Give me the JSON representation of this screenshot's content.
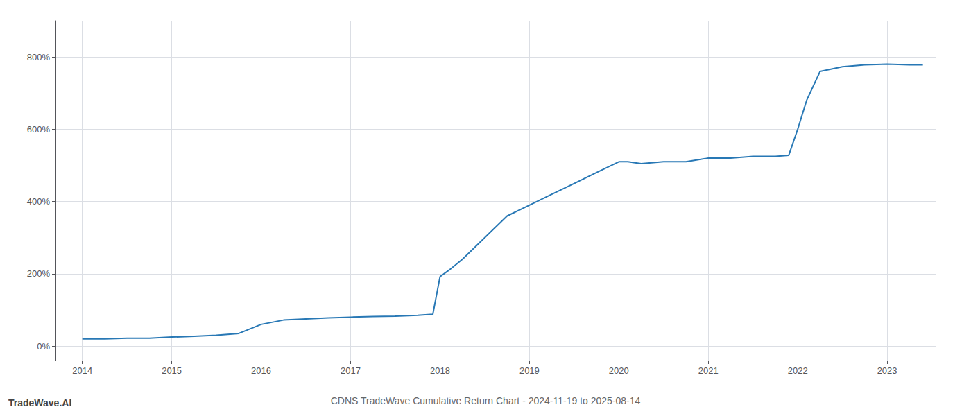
{
  "chart_data": {
    "type": "line",
    "title": "CDNS TradeWave Cumulative Return Chart - 2024-11-19 to 2025-08-14",
    "annotations": [
      "TradeWave.AI"
    ],
    "x": [
      2014.0,
      2014.08,
      2014.25,
      2014.5,
      2014.75,
      2015.0,
      2015.25,
      2015.5,
      2015.75,
      2016.0,
      2016.25,
      2016.5,
      2016.75,
      2017.0,
      2017.25,
      2017.5,
      2017.75,
      2017.92,
      2018.0,
      2018.1,
      2018.25,
      2018.5,
      2018.75,
      2019.0,
      2019.25,
      2019.5,
      2019.75,
      2020.0,
      2020.1,
      2020.25,
      2020.5,
      2020.75,
      2021.0,
      2021.25,
      2021.5,
      2021.75,
      2021.9,
      2022.0,
      2022.1,
      2022.25,
      2022.5,
      2022.75,
      2023.0,
      2023.25,
      2023.4
    ],
    "values": [
      20,
      20,
      20,
      22,
      22,
      25,
      27,
      30,
      35,
      60,
      72,
      75,
      78,
      80,
      82,
      83,
      85,
      88,
      192,
      210,
      240,
      300,
      360,
      390,
      420,
      450,
      480,
      510,
      510,
      505,
      510,
      510,
      520,
      520,
      525,
      525,
      528,
      600,
      680,
      760,
      773,
      778,
      780,
      778,
      778
    ],
    "color": "#2878b5",
    "xlim": [
      2013.7,
      2023.55
    ],
    "xticks": [
      2014,
      2015,
      2016,
      2017,
      2018,
      2019,
      2020,
      2021,
      2022,
      2023
    ],
    "ylim": [
      -40,
      900
    ],
    "yticks": [
      {
        "value": 0,
        "label": "0%"
      },
      {
        "value": 200,
        "label": "200%"
      },
      {
        "value": 400,
        "label": "400%"
      },
      {
        "value": 600,
        "label": "600%"
      },
      {
        "value": 800,
        "label": "800%"
      }
    ],
    "grid": true
  }
}
